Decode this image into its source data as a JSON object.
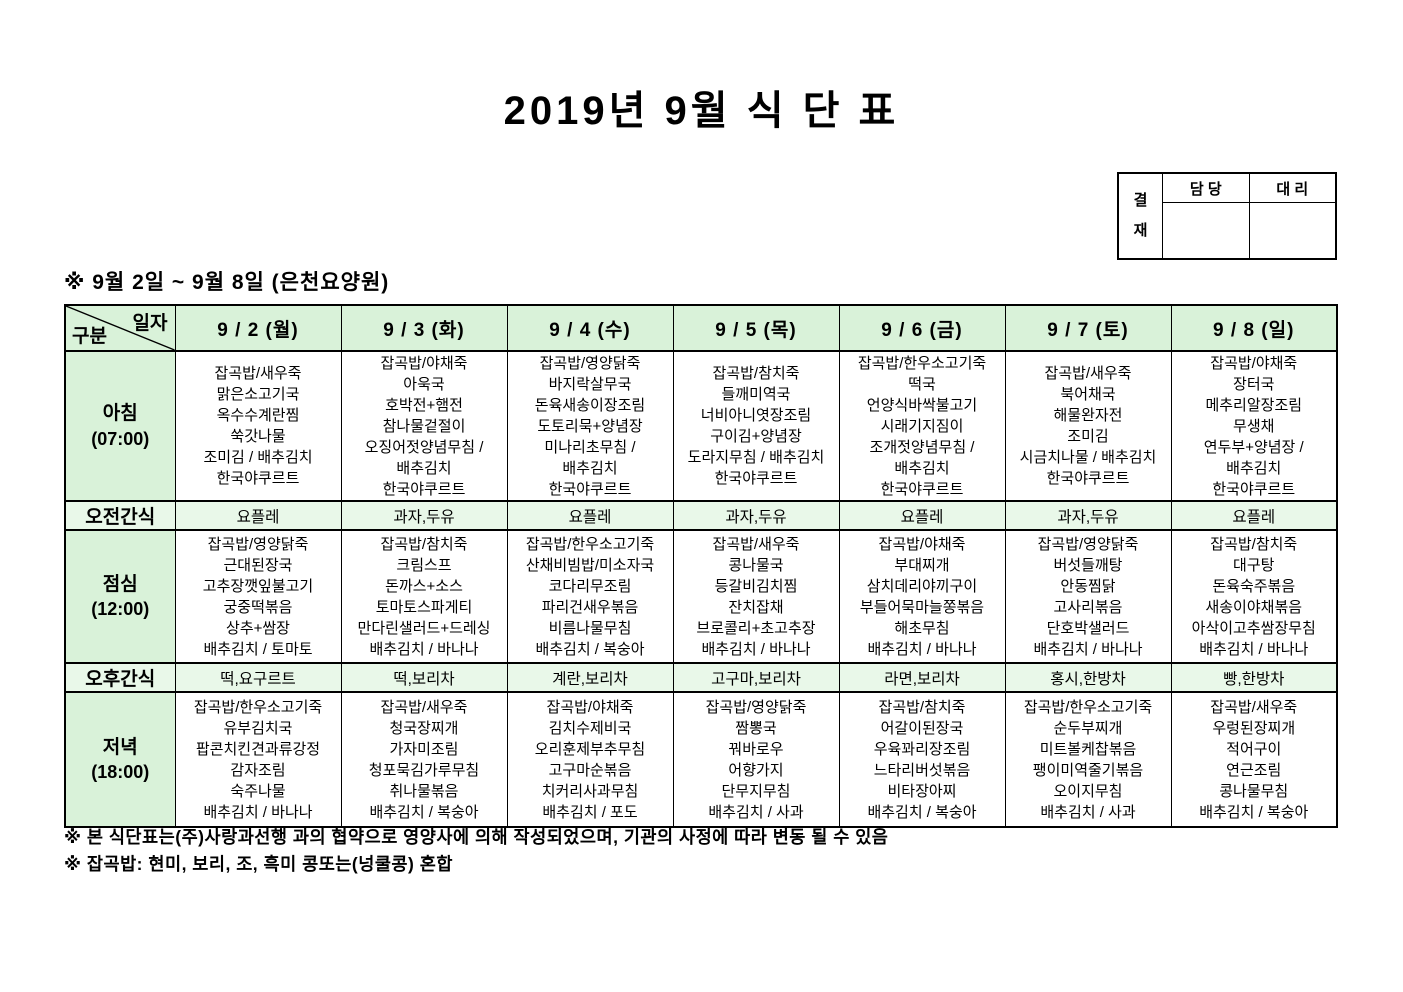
{
  "page": {
    "title": "2019년 9월 식 단 표",
    "subtitle": "※ 9월 2일 ~ 9월 8일 (은천요양원)",
    "notes": [
      "※ 본 식단표는(주)사랑과선행 과의 협약으로 영양사에 의해 작성되었으며, 기관의 사정에 따라 변동 될 수 있음",
      "※ 잡곡밥: 현미, 보리, 조, 흑미 콩또는(넝쿨콩) 혼합"
    ]
  },
  "approval": {
    "title": "결재",
    "columns": [
      "담 당",
      "대 리"
    ],
    "signatures": [
      "",
      ""
    ]
  },
  "colors": {
    "header_green": "#d9f2d9",
    "snack_green": "#e9f8e9",
    "border": "#000000"
  },
  "table": {
    "corner": {
      "top_right": "일자",
      "bottom_left": "구분"
    },
    "day_headers": [
      "9 / 2 (월)",
      "9 / 3 (화)",
      "9 / 4 (수)",
      "9 / 5 (목)",
      "9 / 6 (금)",
      "9 / 7 (토)",
      "9 / 8 (일)"
    ],
    "rows": [
      {
        "id": "breakfast",
        "label": "아침",
        "time": "(07:00)",
        "type": "meal",
        "cells": [
          [
            "잡곡밥/새우죽",
            "맑은소고기국",
            "옥수수계란찜",
            "쑥갓나물",
            "조미김 / 배추김치",
            "한국야쿠르트"
          ],
          [
            "잡곡밥/야채죽",
            "아욱국",
            "호박전+햄전",
            "참나물겉절이",
            "오징어젓양념무침 /",
            "배추김치",
            "한국야쿠르트"
          ],
          [
            "잡곡밥/영양닭죽",
            "바지락살무국",
            "돈육새송이장조림",
            "도토리묵+양념장",
            "미나리초무침 /",
            "배추김치",
            "한국야쿠르트"
          ],
          [
            "잡곡밥/참치죽",
            "들깨미역국",
            "너비아니엿장조림",
            "구이김+양념장",
            "도라지무침 / 배추김치",
            "한국야쿠르트"
          ],
          [
            "잡곡밥/한우소고기죽",
            "떡국",
            "언양식바싹불고기",
            "시래기지짐이",
            "조개젓양념무침 /",
            "배추김치",
            "한국야쿠르트"
          ],
          [
            "잡곡밥/새우죽",
            "북어채국",
            "해물완자전",
            "조미김",
            "시금치나물 / 배추김치",
            "한국야쿠르트"
          ],
          [
            "잡곡밥/야채죽",
            "장터국",
            "메추리알장조림",
            "무생채",
            "연두부+양념장 /",
            "배추김치",
            "한국야쿠르트"
          ]
        ]
      },
      {
        "id": "morning-snack",
        "label": "오전간식",
        "time": "",
        "type": "snack",
        "cells": [
          "요플레",
          "과자,두유",
          "요플레",
          "과자,두유",
          "요플레",
          "과자,두유",
          "요플레"
        ]
      },
      {
        "id": "lunch",
        "label": "점심",
        "time": "(12:00)",
        "type": "meal",
        "cells": [
          [
            "잡곡밥/영양닭죽",
            "근대된장국",
            "고추장깻잎불고기",
            "궁중떡볶음",
            "상추+쌈장",
            "배추김치 / 토마토"
          ],
          [
            "잡곡밥/참치죽",
            "크림스프",
            "돈까스+소스",
            "토마토스파게티",
            "만다린샐러드+드레싱",
            "배추김치 / 바나나"
          ],
          [
            "잡곡밥/한우소고기죽",
            "산채비빔밥/미소자국",
            "코다리무조림",
            "파리건새우볶음",
            "비름나물무침",
            "배추김치 / 복숭아"
          ],
          [
            "잡곡밥/새우죽",
            "콩나물국",
            "등갈비김치찜",
            "잔치잡채",
            "브로콜리+초고추장",
            "배추김치 / 바나나"
          ],
          [
            "잡곡밥/야채죽",
            "부대찌개",
            "삼치데리야끼구이",
            "부들어묵마늘쫑볶음",
            "해초무침",
            "배추김치 / 바나나"
          ],
          [
            "잡곡밥/영양닭죽",
            "버섯들깨탕",
            "안동찜닭",
            "고사리볶음",
            "단호박샐러드",
            "배추김치 / 바나나"
          ],
          [
            "잡곡밥/참치죽",
            "대구탕",
            "돈육숙주볶음",
            "새송이야채볶음",
            "아삭이고추쌈장무침",
            "배추김치 / 바나나"
          ]
        ]
      },
      {
        "id": "afternoon-snack",
        "label": "오후간식",
        "time": "",
        "type": "snack",
        "cells": [
          "떡,요구르트",
          "떡,보리차",
          "계란,보리차",
          "고구마,보리차",
          "라면,보리차",
          "홍시,한방차",
          "빵,한방차"
        ]
      },
      {
        "id": "dinner",
        "label": "저녁",
        "time": "(18:00)",
        "type": "meal",
        "cells": [
          [
            "잡곡밥/한우소고기죽",
            "유부김치국",
            "팝콘치킨견과류강정",
            "감자조림",
            "숙주나물",
            "배추김치 / 바나나"
          ],
          [
            "잡곡밥/새우죽",
            "청국장찌개",
            "가자미조림",
            "청포묵김가루무침",
            "취나물볶음",
            "배추김치 / 복숭아"
          ],
          [
            "잡곡밥/야채죽",
            "김치수제비국",
            "오리훈제부추무침",
            "고구마순볶음",
            "치커리사과무침",
            "배추김치 / 포도"
          ],
          [
            "잡곡밥/영양닭죽",
            "짬뽕국",
            "꿔바로우",
            "어향가지",
            "단무지무침",
            "배추김치 / 사과"
          ],
          [
            "잡곡밥/참치죽",
            "어갈이된장국",
            "우육꽈리장조림",
            "느타리버섯볶음",
            "비타장아찌",
            "배추김치 / 복숭아"
          ],
          [
            "잡곡밥/한우소고기죽",
            "순두부찌개",
            "미트볼케찹볶음",
            "팽이미역줄기볶음",
            "오이지무침",
            "배추김치 / 사과"
          ],
          [
            "잡곡밥/새우죽",
            "우렁된장찌개",
            "적어구이",
            "연근조림",
            "콩나물무침",
            "배추김치 / 복숭아"
          ]
        ]
      }
    ]
  }
}
